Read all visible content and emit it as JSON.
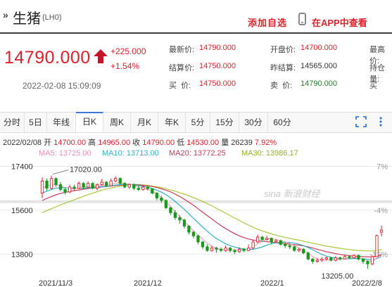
{
  "header": {
    "title": "生猪",
    "code": "(LH0)",
    "add_favorite": "添加自选",
    "app_view": "在APP中查看"
  },
  "quote": {
    "price": "14790.000",
    "change": "+225.000",
    "change_pct": "+1.54%",
    "timestamp": "2022-02-08 15:09:09",
    "fields": [
      {
        "label": "最新价:",
        "value": "14790.000"
      },
      {
        "label": "开盘价:",
        "value": "14700.000"
      },
      {
        "label": "最高价:",
        "value": ""
      },
      {
        "label": "结算价:",
        "value": "14750.000"
      },
      {
        "label": "昨结算:",
        "value": "14565.000"
      },
      {
        "label": "持仓量:",
        "value": ""
      },
      {
        "label": "买  价:",
        "value": "14750.000"
      },
      {
        "label": "卖  价:",
        "value": "14790.000"
      },
      {
        "label": "买",
        "value": ""
      }
    ]
  },
  "tabs": [
    "分时",
    "5日",
    "年线",
    "日K",
    "周K",
    "月K",
    "年K",
    "5分",
    "15分",
    "30分",
    "60分"
  ],
  "active_tab": 3,
  "info": {
    "date": "2022/02/08",
    "open_label": "开",
    "open": "14700.00",
    "high_label": "高",
    "high": "14965.00",
    "close_label": "收",
    "close": "14790.00",
    "low_label": "低",
    "low": "14530.00",
    "vol_label": "量",
    "vol": "26239",
    "pct": "7.92%",
    "ma5": "MA5: 13725.00",
    "ma10": "MA10: 13713.00",
    "ma20": "MA20: 13772.25",
    "ma30": "MA30: 13986.17"
  },
  "colors": {
    "up": "#e0202a",
    "down": "#1a9a1a",
    "ma5": "#f0a0c0",
    "ma10": "#30b0c8",
    "ma20": "#c83a5a",
    "ma30": "#a8c83a"
  },
  "chart_data": {
    "type": "candlestick",
    "y_ticks": [
      17400,
      15600,
      13800
    ],
    "right_ticks": [
      "7%",
      "-4%",
      "-15%"
    ],
    "x_ticks": [
      "2021/11/3",
      "2021/12",
      "2022/1",
      "2022/2/8"
    ],
    "ylim": [
      12800,
      17700
    ],
    "annotations": [
      {
        "text": "17020.00"
      },
      {
        "text": "13205.00"
      }
    ],
    "watermark": "sina 新浪财经",
    "candles": [
      [
        16300,
        16800,
        16950,
        16100
      ],
      [
        16800,
        16500,
        16900,
        16400
      ],
      [
        16500,
        16900,
        17020,
        16450
      ],
      [
        16900,
        16650,
        16950,
        16550
      ],
      [
        16650,
        16450,
        16750,
        16380
      ],
      [
        16450,
        16350,
        16550,
        16250
      ],
      [
        16350,
        16550,
        16650,
        16300
      ],
      [
        16550,
        16500,
        16650,
        16400
      ],
      [
        16500,
        16700,
        16780,
        16480
      ],
      [
        16700,
        16550,
        16750,
        16450
      ],
      [
        16550,
        16700,
        16780,
        16500
      ],
      [
        16700,
        16500,
        16750,
        16450
      ],
      [
        16500,
        16650,
        16700,
        16420
      ],
      [
        16650,
        16750,
        16880,
        16600
      ],
      [
        16750,
        16600,
        16800,
        16550
      ],
      [
        16600,
        16800,
        16900,
        16580
      ],
      [
        16800,
        16900,
        16980,
        16750
      ],
      [
        16900,
        16700,
        16950,
        16650
      ],
      [
        16700,
        16550,
        16750,
        16500
      ],
      [
        16550,
        16650,
        16700,
        16480
      ],
      [
        16650,
        16500,
        16700,
        16420
      ],
      [
        16500,
        16450,
        16600,
        16380
      ],
      [
        16450,
        16550,
        16620,
        16400
      ],
      [
        16550,
        16480,
        16600,
        16420
      ],
      [
        16480,
        16300,
        16500,
        16250
      ],
      [
        16300,
        16100,
        16350,
        16000
      ],
      [
        16100,
        16000,
        16200,
        15900
      ],
      [
        16000,
        15700,
        16050,
        15650
      ],
      [
        15700,
        15500,
        15750,
        15400
      ],
      [
        15500,
        15300,
        15600,
        15200
      ],
      [
        15300,
        15200,
        15400,
        15050
      ],
      [
        15200,
        14950,
        15250,
        14850
      ],
      [
        14950,
        14700,
        15000,
        14600
      ],
      [
        14700,
        14550,
        14750,
        14450
      ],
      [
        14550,
        14300,
        14600,
        14200
      ],
      [
        14300,
        14100,
        14350,
        14000
      ],
      [
        14100,
        13950,
        14200,
        13900
      ],
      [
        13950,
        14050,
        14150,
        13900
      ],
      [
        14050,
        14000,
        14100,
        13850
      ],
      [
        14000,
        13950,
        14080,
        13880
      ],
      [
        13950,
        14050,
        14150,
        13900
      ],
      [
        14050,
        13950,
        14100,
        13870
      ],
      [
        13950,
        13900,
        14000,
        13800
      ],
      [
        13900,
        14000,
        14080,
        13850
      ],
      [
        14000,
        13950,
        14050,
        13880
      ],
      [
        13950,
        14050,
        14200,
        13920
      ],
      [
        14050,
        14300,
        14400,
        14000
      ],
      [
        14300,
        14500,
        14600,
        14250
      ],
      [
        14500,
        14400,
        14550,
        14300
      ],
      [
        14400,
        14450,
        14550,
        14350
      ],
      [
        14450,
        14300,
        14480,
        14200
      ],
      [
        14300,
        14350,
        14420,
        14250
      ],
      [
        14350,
        14200,
        14400,
        14150
      ],
      [
        14200,
        14150,
        14300,
        14050
      ],
      [
        14150,
        14100,
        14250,
        14000
      ],
      [
        14100,
        13950,
        14150,
        13900
      ],
      [
        13950,
        14000,
        14050,
        13880
      ],
      [
        14000,
        13850,
        14050,
        13800
      ],
      [
        13850,
        13600,
        13900,
        13550
      ],
      [
        13600,
        13500,
        13650,
        13400
      ],
      [
        13500,
        13550,
        13650,
        13450
      ],
      [
        13550,
        13600,
        13680,
        13480
      ],
      [
        13600,
        13650,
        13700,
        13550
      ],
      [
        13650,
        13550,
        13700,
        13500
      ],
      [
        13550,
        13650,
        13720,
        13500
      ],
      [
        13650,
        13600,
        13700,
        13550
      ],
      [
        13600,
        13700,
        13780,
        13580
      ],
      [
        13700,
        13650,
        13750,
        13600
      ],
      [
        13650,
        13750,
        13800,
        13620
      ],
      [
        13750,
        13600,
        13780,
        13550
      ],
      [
        13600,
        13500,
        13650,
        13400
      ],
      [
        13500,
        13400,
        13550,
        13205
      ],
      [
        13400,
        13700,
        13750,
        13350
      ],
      [
        13700,
        14560,
        14600,
        13700
      ],
      [
        14700,
        14790,
        14965,
        14530
      ]
    ],
    "ma_series": {
      "ma5": [
        16500,
        16600,
        16650,
        16640,
        16600,
        16520,
        16480,
        16470,
        16500,
        16540,
        16580,
        16600,
        16580,
        16600,
        16640,
        16660,
        16700,
        16720,
        16700,
        16660,
        16620,
        16560,
        16500,
        16450,
        16380,
        16260,
        16120,
        15950,
        15750,
        15550,
        15350,
        15150,
        14950,
        14760,
        14580,
        14420,
        14250,
        14120,
        14050,
        14000,
        13990,
        13980,
        13970,
        13960,
        13970,
        14000,
        14100,
        14220,
        14330,
        14420,
        14440,
        14400,
        14350,
        14300,
        14230,
        14150,
        14060,
        13970,
        13850,
        13700,
        13600,
        13560,
        13550,
        13570,
        13590,
        13600,
        13620,
        13640,
        13660,
        13650,
        13600,
        13520,
        13500,
        13650,
        13725
      ],
      "ma10": [
        16300,
        16380,
        16450,
        16500,
        16520,
        16520,
        16500,
        16490,
        16490,
        16500,
        16520,
        16540,
        16550,
        16560,
        16580,
        16600,
        16630,
        16650,
        16660,
        16660,
        16640,
        16610,
        16580,
        16540,
        16490,
        16420,
        16340,
        16240,
        16110,
        15960,
        15800,
        15630,
        15450,
        15270,
        15090,
        14910,
        14740,
        14580,
        14440,
        14330,
        14230,
        14150,
        14090,
        14040,
        14010,
        13990,
        14000,
        14040,
        14100,
        14170,
        14230,
        14270,
        14290,
        14290,
        14280,
        14250,
        14210,
        14150,
        14070,
        13980,
        13880,
        13790,
        13720,
        13670,
        13640,
        13620,
        13610,
        13610,
        13620,
        13620,
        13610,
        13590,
        13570,
        13620,
        13713
      ],
      "ma20": [
        16000,
        16080,
        16160,
        16230,
        16290,
        16330,
        16370,
        16400,
        16430,
        16460,
        16490,
        16510,
        16530,
        16550,
        16570,
        16590,
        16610,
        16630,
        16640,
        16650,
        16650,
        16640,
        16620,
        16600,
        16570,
        16530,
        16480,
        16420,
        16350,
        16260,
        16160,
        16050,
        15930,
        15800,
        15660,
        15520,
        15380,
        15240,
        15100,
        14970,
        14850,
        14740,
        14640,
        14550,
        14480,
        14420,
        14380,
        14350,
        14330,
        14310,
        14290,
        14270,
        14250,
        14230,
        14210,
        14190,
        14170,
        14140,
        14100,
        14050,
        14000,
        13950,
        13900,
        13860,
        13820,
        13790,
        13760,
        13740,
        13720,
        13710,
        13700,
        13690,
        13690,
        13720,
        13772
      ],
      "ma30": [
        15500,
        15580,
        15660,
        15740,
        15820,
        15890,
        15960,
        16030,
        16100,
        16170,
        16240,
        16300,
        16360,
        16420,
        16470,
        16510,
        16550,
        16590,
        16620,
        16640,
        16650,
        16650,
        16640,
        16620,
        16590,
        16560,
        16520,
        16480,
        16430,
        16380,
        16320,
        16260,
        16190,
        16120,
        16040,
        15960,
        15870,
        15780,
        15680,
        15580,
        15480,
        15380,
        15280,
        15180,
        15080,
        14990,
        14900,
        14820,
        14750,
        14690,
        14630,
        14580,
        14530,
        14490,
        14450,
        14410,
        14370,
        14330,
        14290,
        14250,
        14210,
        14170,
        14130,
        14100,
        14070,
        14040,
        14010,
        13990,
        13970,
        13950,
        13940,
        13930,
        13930,
        13950,
        13986
      ]
    }
  }
}
